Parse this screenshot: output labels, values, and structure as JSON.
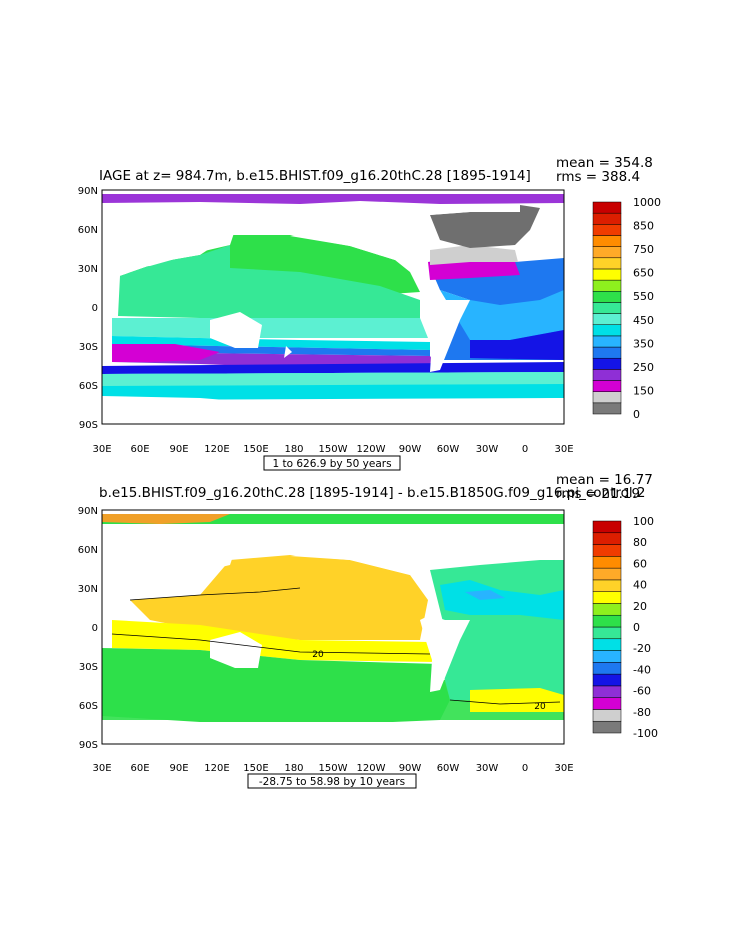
{
  "panels": [
    {
      "title": "IAGE at z= 984.7m, b.e15.BHIST.f09_g16.20thC.28 [1895-1914]",
      "mean": "mean = 354.8",
      "rms": "rms = 388.4",
      "range_label": "1 to 626.9 by 50 years",
      "colorbar": {
        "labels": [
          "1000",
          "850",
          "750",
          "650",
          "550",
          "450",
          "350",
          "250",
          "150",
          "0"
        ],
        "colors": [
          "#7a7a7a",
          "#cfcfcf",
          "#d400d4",
          "#8f2fd6",
          "#1414e6",
          "#1e78f0",
          "#28b4ff",
          "#00e0e6",
          "#5cf0d2",
          "#36e896",
          "#2ee04a",
          "#8ef01e",
          "#ffff00",
          "#ffd228",
          "#ffaa28",
          "#ff8c00",
          "#f03c00",
          "#dc1e00",
          "#c80000"
        ]
      },
      "field": [
        {
          "color": "#9b35d8",
          "desc": "arctic"
        },
        {
          "color": "#6f6f6f",
          "desc": "greenland region grey"
        },
        {
          "color": "#cfcfcf",
          "desc": "labrador light grey"
        },
        {
          "color": "#d400d4",
          "desc": "north atlantic magenta"
        },
        {
          "color": "#1414e6",
          "desc": "atlantic blue"
        },
        {
          "color": "#1e78f0",
          "desc": "atlantic mid blue"
        },
        {
          "color": "#28b4ff",
          "desc": "atlantic light blue"
        },
        {
          "color": "#36e896",
          "desc": "pacific teal green"
        },
        {
          "color": "#2ee04a",
          "desc": "north pacific green"
        },
        {
          "color": "#5cf0d2",
          "desc": "pacific cyan"
        },
        {
          "color": "#00e0e6",
          "desc": "equatorial cyan"
        },
        {
          "color": "#1e78f0",
          "desc": "southern band blue"
        },
        {
          "color": "#8f2fd6",
          "desc": "southern purple"
        },
        {
          "color": "#d400d4",
          "desc": "southern magenta"
        },
        {
          "color": "#1414e6",
          "desc": "circumpolar blue"
        },
        {
          "color": "#00e0e6",
          "desc": "antarctic cyan"
        }
      ]
    },
    {
      "title": "b.e15.BHIST.f09_g16.20thC.28 [1895-1914] - b.e15.B1850G.f09_g16.pi_control.2",
      "mean": "mean = 16.77",
      "rms": "rms = 21.19",
      "range_label": "-28.75 to 58.98 by 10 years",
      "colorbar": {
        "labels": [
          "100",
          "80",
          "60",
          "40",
          "20",
          "0",
          "-20",
          "-40",
          "-60",
          "-80",
          "-100"
        ],
        "colors": [
          "#7a7a7a",
          "#cfcfcf",
          "#d400d4",
          "#8f2fd6",
          "#1414e6",
          "#1e78f0",
          "#28b4ff",
          "#00e0e6",
          "#36e896",
          "#2ee04a",
          "#8ef01e",
          "#ffff00",
          "#ffd228",
          "#ffaa28",
          "#ff8c00",
          "#f03c00",
          "#dc1e00",
          "#c80000"
        ]
      },
      "contour_labels": [
        "20",
        "20"
      ],
      "field": [
        {
          "color": "#f0a028",
          "desc": "arctic orange"
        },
        {
          "color": "#ffd228",
          "desc": "north pacific gold"
        },
        {
          "color": "#ffff00",
          "desc": "tropical yellow"
        },
        {
          "color": "#2ee04a",
          "desc": "southern green"
        },
        {
          "color": "#36e896",
          "desc": "atlantic green"
        },
        {
          "color": "#00e0e6",
          "desc": "atlantic cyan"
        },
        {
          "color": "#28b4ff",
          "desc": "atlantic light blue"
        },
        {
          "color": "#8ef01e",
          "desc": "lime"
        }
      ]
    }
  ],
  "x_ticks": [
    "30E",
    "60E",
    "90E",
    "120E",
    "150E",
    "180",
    "150W",
    "120W",
    "90W",
    "60W",
    "30W",
    "0",
    "30E"
  ],
  "y_ticks": [
    "90N",
    "60N",
    "30N",
    "0",
    "30S",
    "60S",
    "90S"
  ]
}
